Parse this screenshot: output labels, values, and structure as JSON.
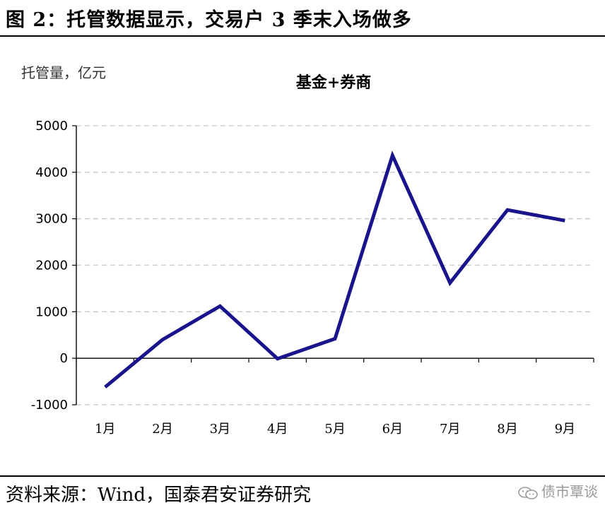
{
  "figure_title": "图 2：托管数据显示，交易户 3 季末入场做多",
  "source": "资料来源：Wind，国泰君安证券研究",
  "watermark": "债市覃谈",
  "chart_data": {
    "type": "line",
    "title": "基金+券商",
    "ylabel": "托管量，亿元",
    "xlabel": "",
    "categories": [
      "1月",
      "2月",
      "3月",
      "4月",
      "5月",
      "6月",
      "7月",
      "8月",
      "9月"
    ],
    "series": [
      {
        "values": [
          -620,
          400,
          1120,
          -10,
          420,
          4360,
          1620,
          3190,
          2960
        ],
        "color": "#1a148c"
      }
    ],
    "ylim": [
      -1000,
      5000
    ],
    "yticks": [
      -1000,
      0,
      1000,
      2000,
      3000,
      4000,
      5000
    ],
    "grid": true,
    "legend": "none"
  }
}
